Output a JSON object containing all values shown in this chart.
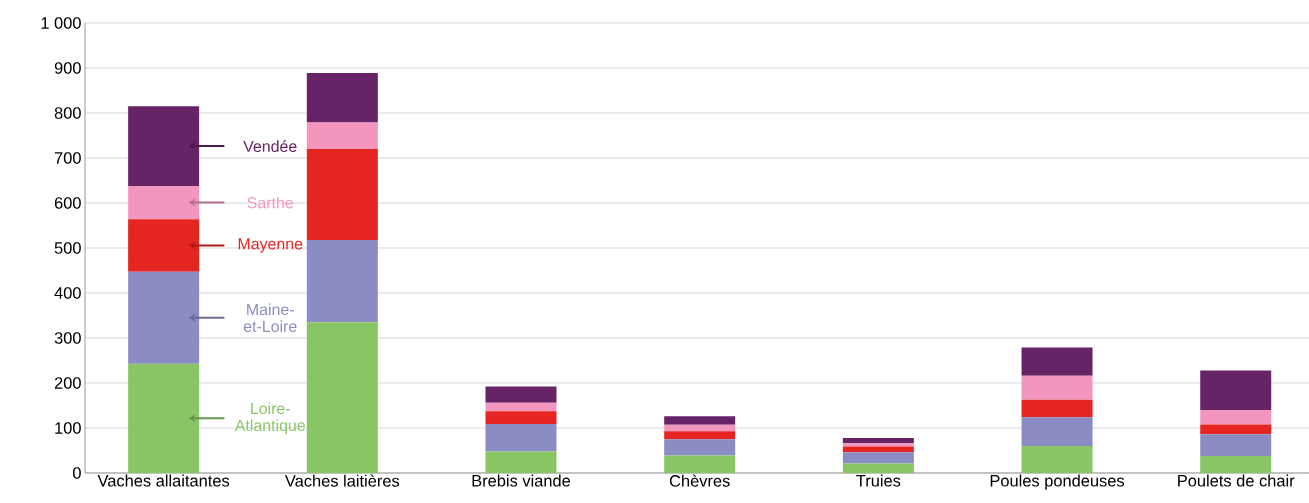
{
  "chart_data": {
    "type": "bar",
    "stacked": true,
    "categories": [
      "Vaches allaitantes",
      "Vaches laitières",
      "Brebis viande",
      "Chèvres",
      "Truies",
      "Poules pondeuses",
      "Poulets de chair"
    ],
    "series": [
      {
        "name": "Loire-Atlantique",
        "color": "#88c665",
        "values": [
          243,
          335,
          48,
          39,
          21,
          60,
          38
        ]
      },
      {
        "name": "Maine-et-Loire",
        "color": "#8c8cc4",
        "values": [
          204,
          183,
          61,
          36,
          25,
          64,
          48
        ]
      },
      {
        "name": "Mayenne",
        "color": "#e52521",
        "values": [
          117,
          202,
          28,
          18,
          13,
          39,
          22
        ]
      },
      {
        "name": "Sarthe",
        "color": "#f396be",
        "values": [
          74,
          59,
          19,
          14,
          7,
          53,
          32
        ]
      },
      {
        "name": "Vendée",
        "color": "#662366",
        "values": [
          177,
          110,
          36,
          19,
          12,
          63,
          88
        ]
      }
    ],
    "ylim": [
      0,
      1000
    ],
    "yticks": [
      0,
      100,
      200,
      300,
      400,
      500,
      600,
      700,
      800,
      900,
      {
        "value": 1000,
        "label": "1 000"
      }
    ],
    "grid": "y",
    "legend": false
  }
}
